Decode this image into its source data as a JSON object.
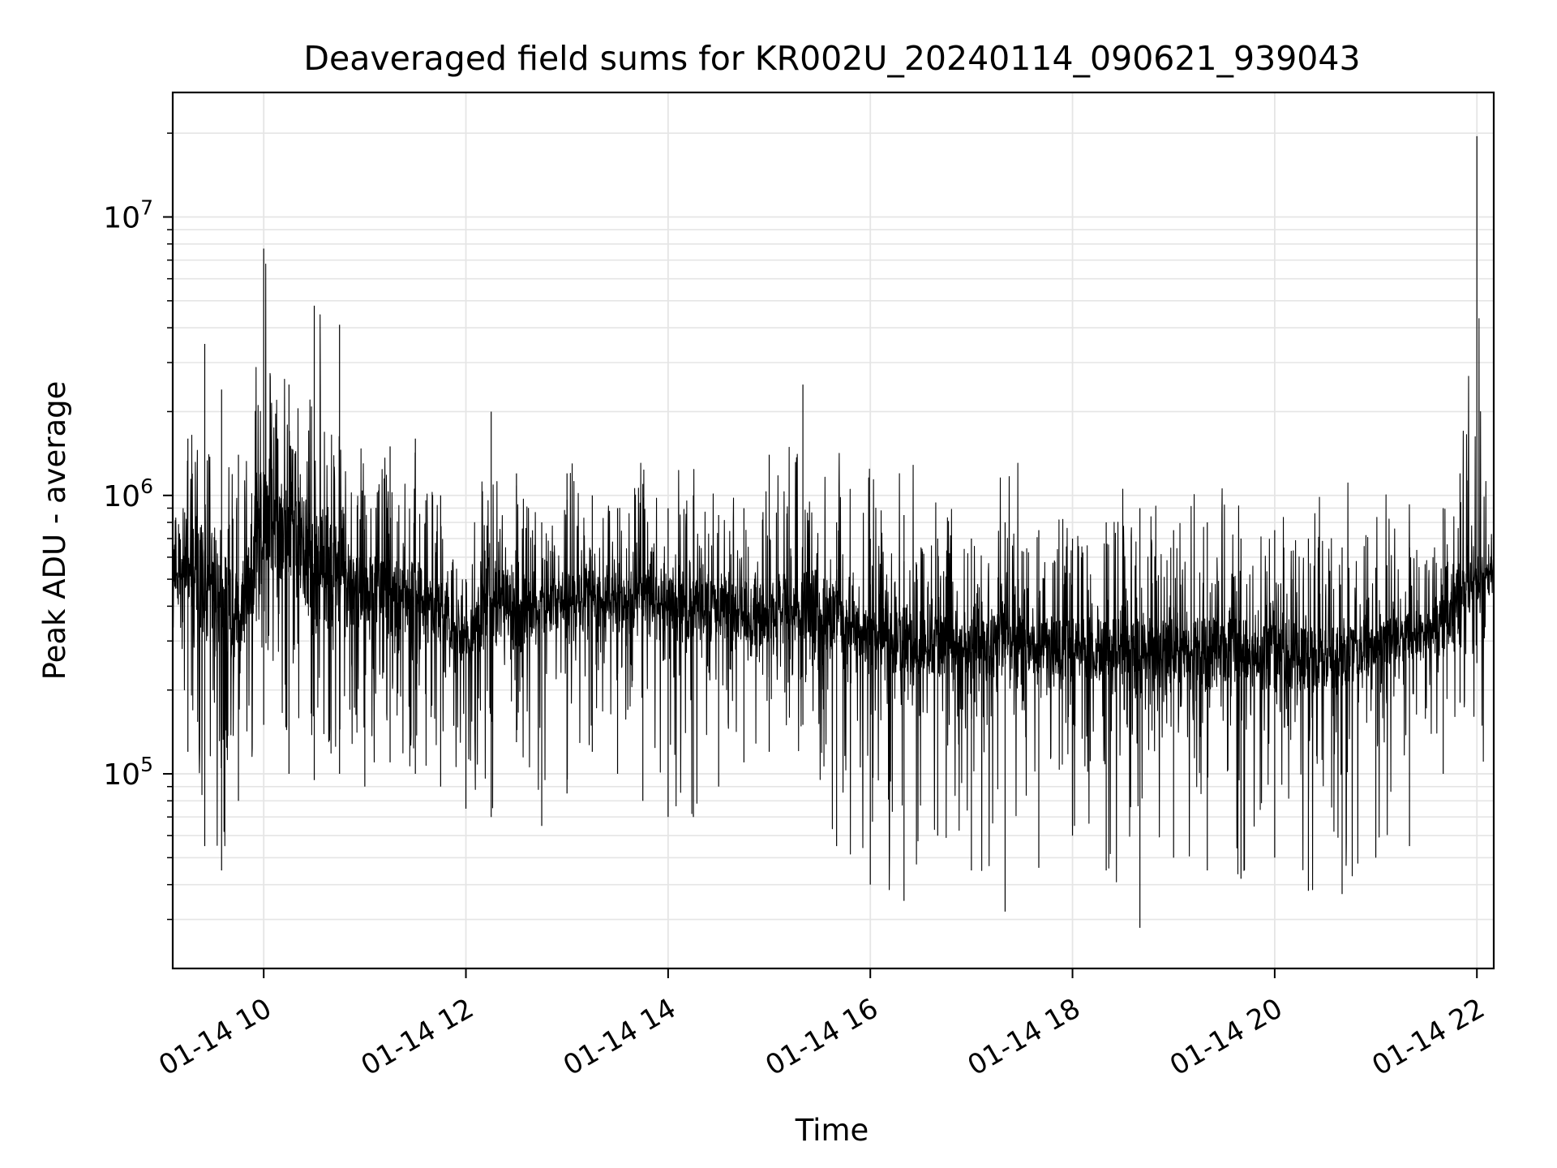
{
  "chart_data": {
    "type": "line",
    "title": "Deaveraged field sums for KR002U_20240114_090621_939043",
    "xlabel": "Time",
    "ylabel": "Peak ADU - average",
    "x_scale": "time",
    "y_scale": "log",
    "xlim": [
      "2024-01-14 09:06",
      "2024-01-14 22:10"
    ],
    "ylim": [
      20000,
      28000000
    ],
    "x_ticks": [
      {
        "value": "2024-01-14 10:00",
        "label": "01-14 10"
      },
      {
        "value": "2024-01-14 12:00",
        "label": "01-14 12"
      },
      {
        "value": "2024-01-14 14:00",
        "label": "01-14 14"
      },
      {
        "value": "2024-01-14 16:00",
        "label": "01-14 16"
      },
      {
        "value": "2024-01-14 18:00",
        "label": "01-14 18"
      },
      {
        "value": "2024-01-14 20:00",
        "label": "01-14 20"
      },
      {
        "value": "2024-01-14 22:00",
        "label": "01-14 22"
      }
    ],
    "y_ticks": [
      {
        "value": 100000,
        "base": "10",
        "exp": "5"
      },
      {
        "value": 1000000,
        "base": "10",
        "exp": "6"
      },
      {
        "value": 10000000,
        "base": "10",
        "exp": "7"
      }
    ],
    "grid": true,
    "line_color": "#000000",
    "grid_color": "#e5e5e5",
    "series": [
      {
        "x": [
          "2024-01-14 09:06",
          "2024-01-14 09:15",
          "2024-01-14 09:25",
          "2024-01-14 09:35",
          "2024-01-14 09:45",
          "2024-01-14 10:00",
          "2024-01-14 10:15",
          "2024-01-14 10:30",
          "2024-01-14 10:45",
          "2024-01-14 11:00",
          "2024-01-14 11:15",
          "2024-01-14 11:30",
          "2024-01-14 11:45",
          "2024-01-14 12:00",
          "2024-01-14 12:15",
          "2024-01-14 12:30",
          "2024-01-14 12:45",
          "2024-01-14 13:00",
          "2024-01-14 13:15",
          "2024-01-14 13:30",
          "2024-01-14 13:45",
          "2024-01-14 14:00",
          "2024-01-14 14:15",
          "2024-01-14 14:30",
          "2024-01-14 14:45",
          "2024-01-14 15:00",
          "2024-01-14 15:20",
          "2024-01-14 15:40",
          "2024-01-14 16:00",
          "2024-01-14 16:20",
          "2024-01-14 16:40",
          "2024-01-14 17:00",
          "2024-01-14 17:20",
          "2024-01-14 17:40",
          "2024-01-14 18:00",
          "2024-01-14 18:20",
          "2024-01-14 18:40",
          "2024-01-14 19:00",
          "2024-01-14 19:20",
          "2024-01-14 19:40",
          "2024-01-14 20:00",
          "2024-01-14 20:20",
          "2024-01-14 20:40",
          "2024-01-14 21:00",
          "2024-01-14 21:20",
          "2024-01-14 21:40",
          "2024-01-14 21:50",
          "2024-01-14 22:00",
          "2024-01-14 22:10"
        ],
        "y": [
          450000,
          600000,
          500000,
          400000,
          350000,
          900000,
          700000,
          550000,
          500000,
          450000,
          420000,
          400000,
          380000,
          300000,
          420000,
          380000,
          400000,
          420000,
          430000,
          400000,
          400000,
          410000,
          390000,
          380000,
          380000,
          390000,
          400000,
          380000,
          300000,
          300000,
          290000,
          280000,
          290000,
          280000,
          290000,
          270000,
          260000,
          280000,
          270000,
          280000,
          270000,
          260000,
          260000,
          290000,
          310000,
          340000,
          480000,
          500000,
          520000
        ],
        "y_max": [
          800000,
          1600000,
          3500000,
          2400000,
          1400000,
          7700000,
          2500000,
          4800000,
          4100000,
          1000000,
          1500000,
          1600000,
          1000000,
          500000,
          2000000,
          1200000,
          800000,
          1200000,
          1000000,
          900000,
          1100000,
          900000,
          1000000,
          850000,
          900000,
          1400000,
          2500000,
          800000,
          700000,
          850000,
          700000,
          700000,
          800000,
          750000,
          700000,
          800000,
          900000,
          750000,
          800000,
          700000,
          750000,
          700000,
          650000,
          550000,
          650000,
          900000,
          1200000,
          19500000,
          800000
        ],
        "y_min": [
          170000,
          120000,
          55000,
          45000,
          80000,
          150000,
          100000,
          95000,
          100000,
          90000,
          110000,
          100000,
          90000,
          75000,
          70000,
          130000,
          65000,
          85000,
          120000,
          100000,
          80000,
          70000,
          70000,
          90000,
          110000,
          120000,
          150000,
          55000,
          40000,
          35000,
          60000,
          45000,
          32000,
          46000,
          60000,
          45000,
          28000,
          50000,
          45000,
          42000,
          50000,
          38000,
          37000,
          50000,
          55000,
          100000,
          180000,
          250000,
          320000
        ]
      }
    ]
  }
}
